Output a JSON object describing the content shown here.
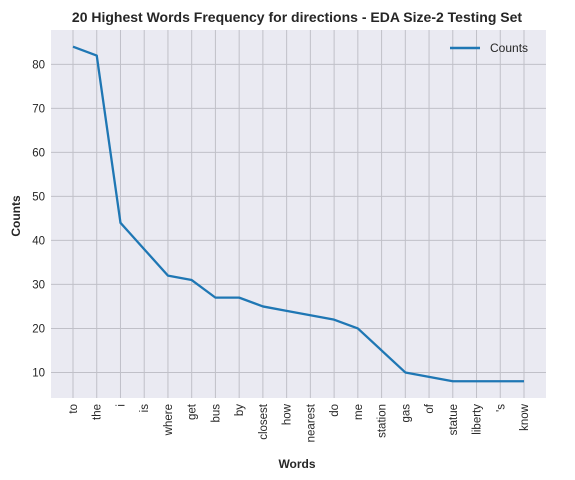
{
  "chart_data": {
    "type": "line",
    "title": "20 Highest Words Frequency for directions - EDA Size-2 Testing Set",
    "xlabel": "Words",
    "ylabel": "Counts",
    "categories": [
      "to",
      "the",
      "i",
      "is",
      "where",
      "get",
      "bus",
      "by",
      "closest",
      "how",
      "nearest",
      "do",
      "me",
      "station",
      "gas",
      "of",
      "statue",
      "liberty",
      "'s",
      "know"
    ],
    "series": [
      {
        "name": "Counts",
        "values": [
          84,
          82,
          44,
          38,
          32,
          31,
          27,
          27,
          25,
          24,
          23,
          22,
          20,
          15,
          10,
          9,
          8,
          8,
          8,
          8
        ],
        "color": "#1f77b4"
      }
    ],
    "yticks": [
      10,
      20,
      30,
      40,
      50,
      60,
      70,
      80
    ],
    "ylim": [
      4.2,
      87.8
    ],
    "grid": true,
    "legend_position": "top-right",
    "background_color": "#eaeaf2",
    "grid_color": "#c0c0c8"
  }
}
